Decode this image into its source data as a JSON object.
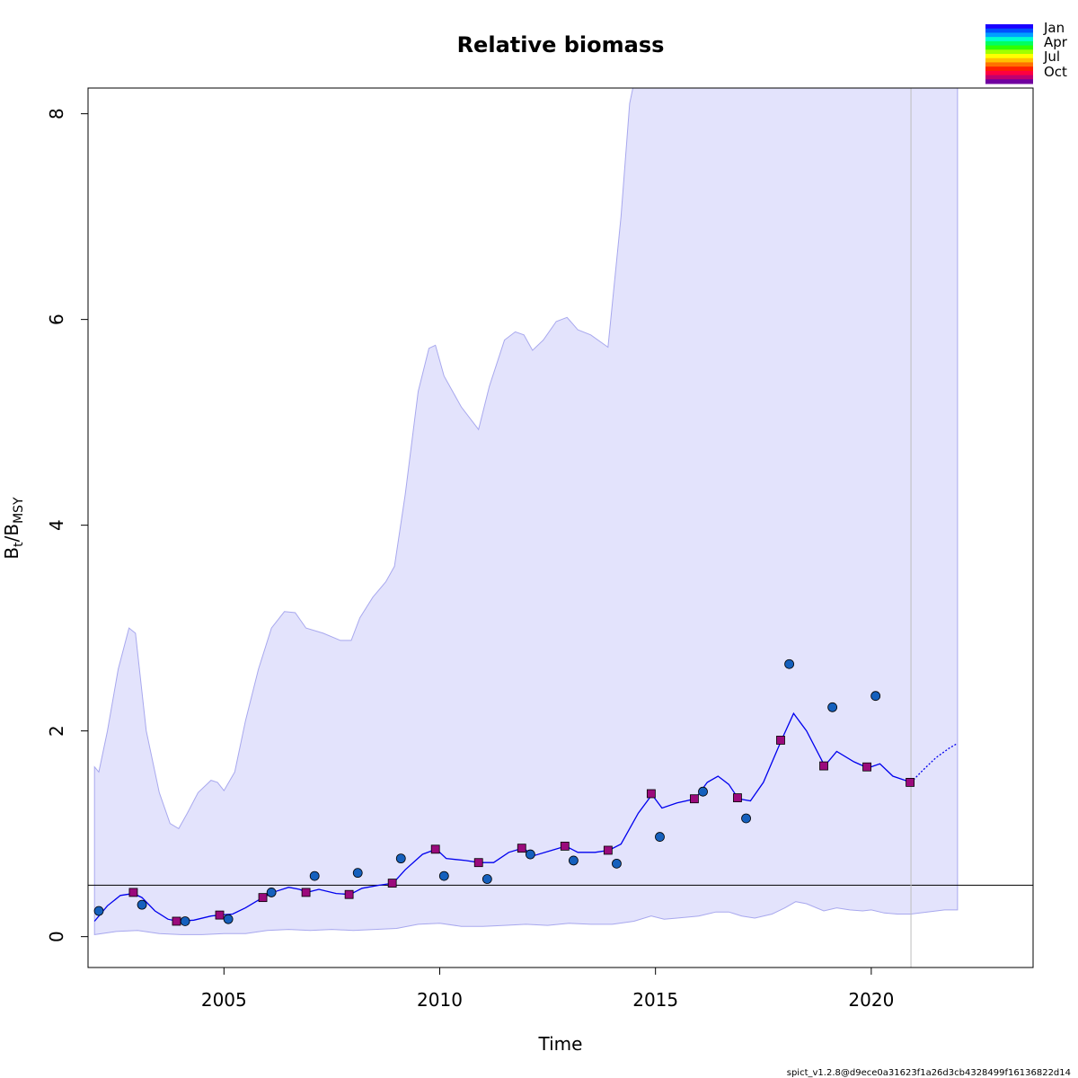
{
  "chart_data": {
    "type": "line",
    "title": "Relative biomass",
    "xlabel": "Time",
    "ylabel": {
      "main": "B",
      "sub1": "t",
      "sep": "/B",
      "sub2": "MSY"
    },
    "xlim": [
      2001.85,
      2023.75
    ],
    "ylim": [
      -0.3,
      8.25
    ],
    "xticks": [
      2005,
      2010,
      2015,
      2020
    ],
    "yticks": [
      0,
      2,
      4,
      6,
      8
    ],
    "reference_line": 0.5,
    "forecast_start": 2020.92,
    "footer": "spict_v1.2.8@d9ece0a31623f1a26d3cb4328499f16136822d14",
    "legend": {
      "position": "top-right",
      "labels": [
        "Jan",
        "Apr",
        "Jul",
        "Oct"
      ],
      "colors": [
        "#1a00ff",
        "#0050ff",
        "#00a0ff",
        "#00ffd0",
        "#00ff60",
        "#30ff00",
        "#a0ff00",
        "#ffff00",
        "#ffc000",
        "#ff7000",
        "#ff2000",
        "#ff0040",
        "#c00070",
        "#7000a0"
      ]
    },
    "colors": {
      "band": "#e3e3fc",
      "band_edge": "#a8a8ee",
      "line": "#0000ee",
      "circle": "#1560bd",
      "square": "#9b0a7c"
    },
    "upper_ci": [
      [
        2002.0,
        1.65
      ],
      [
        2002.1,
        1.6
      ],
      [
        2002.3,
        2.0
      ],
      [
        2002.55,
        2.6
      ],
      [
        2002.8,
        3.0
      ],
      [
        2002.95,
        2.95
      ],
      [
        2003.2,
        2.0
      ],
      [
        2003.5,
        1.4
      ],
      [
        2003.75,
        1.1
      ],
      [
        2003.95,
        1.05
      ],
      [
        2004.15,
        1.2
      ],
      [
        2004.4,
        1.4
      ],
      [
        2004.7,
        1.52
      ],
      [
        2004.85,
        1.5
      ],
      [
        2005.0,
        1.42
      ],
      [
        2005.25,
        1.6
      ],
      [
        2005.5,
        2.1
      ],
      [
        2005.8,
        2.6
      ],
      [
        2006.1,
        3.0
      ],
      [
        2006.4,
        3.16
      ],
      [
        2006.65,
        3.15
      ],
      [
        2006.9,
        3.0
      ],
      [
        2007.3,
        2.95
      ],
      [
        2007.7,
        2.88
      ],
      [
        2007.95,
        2.88
      ],
      [
        2008.15,
        3.1
      ],
      [
        2008.45,
        3.3
      ],
      [
        2008.75,
        3.45
      ],
      [
        2008.95,
        3.6
      ],
      [
        2009.2,
        4.3
      ],
      [
        2009.5,
        5.3
      ],
      [
        2009.75,
        5.72
      ],
      [
        2009.9,
        5.75
      ],
      [
        2010.1,
        5.45
      ],
      [
        2010.5,
        5.15
      ],
      [
        2010.9,
        4.93
      ],
      [
        2011.15,
        5.35
      ],
      [
        2011.5,
        5.8
      ],
      [
        2011.75,
        5.88
      ],
      [
        2011.95,
        5.85
      ],
      [
        2012.15,
        5.7
      ],
      [
        2012.4,
        5.8
      ],
      [
        2012.7,
        5.98
      ],
      [
        2012.95,
        6.02
      ],
      [
        2013.2,
        5.9
      ],
      [
        2013.5,
        5.85
      ],
      [
        2013.9,
        5.73
      ],
      [
        2014.2,
        7.0
      ],
      [
        2014.4,
        8.1
      ],
      [
        2014.55,
        8.4
      ],
      [
        2022.0,
        8.4
      ]
    ],
    "lower_ci": [
      [
        2002.0,
        0.02
      ],
      [
        2002.5,
        0.05
      ],
      [
        2003.0,
        0.06
      ],
      [
        2003.5,
        0.03
      ],
      [
        2004.0,
        0.02
      ],
      [
        2004.5,
        0.02
      ],
      [
        2005.0,
        0.03
      ],
      [
        2005.5,
        0.03
      ],
      [
        2006.0,
        0.06
      ],
      [
        2006.5,
        0.07
      ],
      [
        2007.0,
        0.06
      ],
      [
        2007.5,
        0.07
      ],
      [
        2008.0,
        0.06
      ],
      [
        2008.5,
        0.07
      ],
      [
        2009.0,
        0.08
      ],
      [
        2009.5,
        0.12
      ],
      [
        2010.0,
        0.13
      ],
      [
        2010.5,
        0.1
      ],
      [
        2011.0,
        0.1
      ],
      [
        2011.5,
        0.11
      ],
      [
        2012.0,
        0.12
      ],
      [
        2012.5,
        0.11
      ],
      [
        2013.0,
        0.13
      ],
      [
        2013.5,
        0.12
      ],
      [
        2014.0,
        0.12
      ],
      [
        2014.5,
        0.15
      ],
      [
        2014.9,
        0.2
      ],
      [
        2015.2,
        0.17
      ],
      [
        2015.5,
        0.18
      ],
      [
        2016.0,
        0.2
      ],
      [
        2016.4,
        0.24
      ],
      [
        2016.7,
        0.24
      ],
      [
        2017.0,
        0.2
      ],
      [
        2017.3,
        0.18
      ],
      [
        2017.7,
        0.22
      ],
      [
        2018.0,
        0.28
      ],
      [
        2018.25,
        0.34
      ],
      [
        2018.5,
        0.32
      ],
      [
        2018.9,
        0.25
      ],
      [
        2019.2,
        0.28
      ],
      [
        2019.5,
        0.26
      ],
      [
        2019.8,
        0.25
      ],
      [
        2020.0,
        0.26
      ],
      [
        2020.3,
        0.23
      ],
      [
        2020.6,
        0.22
      ],
      [
        2020.92,
        0.22
      ],
      [
        2021.3,
        0.24
      ],
      [
        2021.7,
        0.26
      ],
      [
        2022.0,
        0.26
      ]
    ],
    "estimate": [
      [
        2002.0,
        0.15
      ],
      [
        2002.3,
        0.3
      ],
      [
        2002.6,
        0.4
      ],
      [
        2002.9,
        0.42
      ],
      [
        2003.1,
        0.38
      ],
      [
        2003.4,
        0.25
      ],
      [
        2003.7,
        0.17
      ],
      [
        2003.92,
        0.15
      ],
      [
        2004.3,
        0.16
      ],
      [
        2004.7,
        0.2
      ],
      [
        2004.9,
        0.21
      ],
      [
        2005.2,
        0.22
      ],
      [
        2005.5,
        0.28
      ],
      [
        2005.9,
        0.38
      ],
      [
        2006.2,
        0.44
      ],
      [
        2006.5,
        0.48
      ],
      [
        2006.75,
        0.46
      ],
      [
        2006.92,
        0.43
      ],
      [
        2007.2,
        0.46
      ],
      [
        2007.6,
        0.42
      ],
      [
        2007.92,
        0.41
      ],
      [
        2008.2,
        0.47
      ],
      [
        2008.6,
        0.5
      ],
      [
        2008.92,
        0.52
      ],
      [
        2009.2,
        0.65
      ],
      [
        2009.6,
        0.8
      ],
      [
        2009.92,
        0.85
      ],
      [
        2010.15,
        0.76
      ],
      [
        2010.6,
        0.74
      ],
      [
        2010.92,
        0.72
      ],
      [
        2011.25,
        0.72
      ],
      [
        2011.6,
        0.82
      ],
      [
        2011.92,
        0.86
      ],
      [
        2012.2,
        0.79
      ],
      [
        2012.6,
        0.84
      ],
      [
        2012.92,
        0.88
      ],
      [
        2013.2,
        0.82
      ],
      [
        2013.6,
        0.82
      ],
      [
        2013.92,
        0.84
      ],
      [
        2014.2,
        0.9
      ],
      [
        2014.6,
        1.2
      ],
      [
        2014.92,
        1.38
      ],
      [
        2015.15,
        1.25
      ],
      [
        2015.5,
        1.3
      ],
      [
        2015.92,
        1.34
      ],
      [
        2016.2,
        1.5
      ],
      [
        2016.45,
        1.56
      ],
      [
        2016.7,
        1.48
      ],
      [
        2016.92,
        1.34
      ],
      [
        2017.2,
        1.32
      ],
      [
        2017.5,
        1.5
      ],
      [
        2017.92,
        1.91
      ],
      [
        2018.2,
        2.17
      ],
      [
        2018.5,
        2.0
      ],
      [
        2018.92,
        1.66
      ],
      [
        2019.2,
        1.8
      ],
      [
        2019.6,
        1.7
      ],
      [
        2019.92,
        1.64
      ],
      [
        2020.2,
        1.68
      ],
      [
        2020.5,
        1.56
      ],
      [
        2020.92,
        1.5
      ]
    ],
    "forecast": [
      [
        2020.92,
        1.5
      ],
      [
        2021.2,
        1.62
      ],
      [
        2021.5,
        1.74
      ],
      [
        2021.8,
        1.83
      ],
      [
        2022.0,
        1.88
      ]
    ],
    "circle_points": [
      [
        2002.1,
        0.25
      ],
      [
        2003.1,
        0.31
      ],
      [
        2004.1,
        0.15
      ],
      [
        2005.1,
        0.17
      ],
      [
        2006.1,
        0.43
      ],
      [
        2007.1,
        0.59
      ],
      [
        2008.1,
        0.62
      ],
      [
        2009.1,
        0.76
      ],
      [
        2010.1,
        0.59
      ],
      [
        2011.1,
        0.56
      ],
      [
        2012.1,
        0.8
      ],
      [
        2013.1,
        0.74
      ],
      [
        2014.1,
        0.71
      ],
      [
        2015.1,
        0.97
      ],
      [
        2016.1,
        1.41
      ],
      [
        2017.1,
        1.15
      ],
      [
        2018.1,
        2.65
      ],
      [
        2019.1,
        2.23
      ],
      [
        2020.1,
        2.34
      ]
    ],
    "square_points": [
      [
        2002.9,
        0.43
      ],
      [
        2003.9,
        0.15
      ],
      [
        2004.9,
        0.21
      ],
      [
        2005.9,
        0.38
      ],
      [
        2006.9,
        0.43
      ],
      [
        2007.9,
        0.41
      ],
      [
        2008.9,
        0.52
      ],
      [
        2009.9,
        0.85
      ],
      [
        2010.9,
        0.72
      ],
      [
        2011.9,
        0.86
      ],
      [
        2012.9,
        0.88
      ],
      [
        2013.9,
        0.84
      ],
      [
        2014.9,
        1.39
      ],
      [
        2015.9,
        1.34
      ],
      [
        2016.9,
        1.35
      ],
      [
        2017.9,
        1.91
      ],
      [
        2018.9,
        1.66
      ],
      [
        2019.9,
        1.65
      ],
      [
        2020.9,
        1.5
      ]
    ]
  }
}
